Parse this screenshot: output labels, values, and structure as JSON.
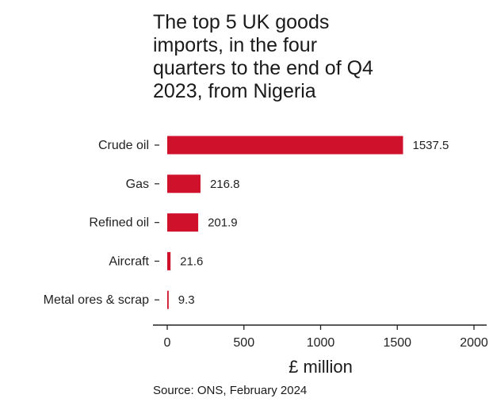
{
  "chart_data": {
    "type": "bar",
    "orientation": "horizontal",
    "title_lines": [
      "The top 5 UK goods",
      "imports, in the four",
      "quarters to the end of Q4",
      "2023, from Nigeria"
    ],
    "categories": [
      "Crude oil",
      "Gas",
      "Refined oil",
      "Aircraft",
      "Metal ores & scrap"
    ],
    "values": [
      1537.5,
      216.8,
      201.9,
      21.6,
      9.3
    ],
    "value_labels": [
      "1537.5",
      "216.8",
      "201.9",
      "21.6",
      "9.3"
    ],
    "xlabel": "£ million",
    "xlim": [
      0,
      2000
    ],
    "xticks": [
      0,
      500,
      1000,
      1500,
      2000
    ],
    "xtick_labels": [
      "0",
      "500",
      "1000",
      "1500",
      "2000"
    ],
    "bar_color": "#d0112b",
    "grid": false,
    "source": "Source: ONS, February 2024"
  }
}
